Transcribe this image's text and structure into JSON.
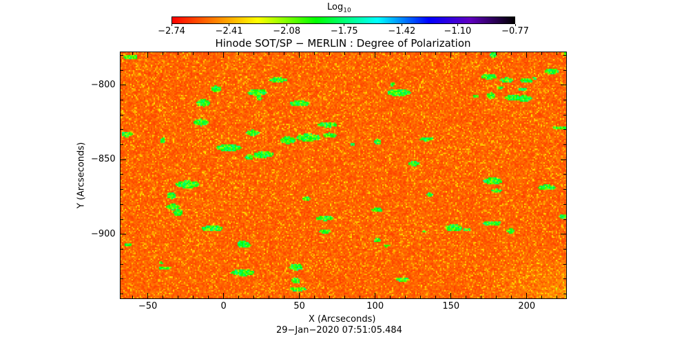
{
  "chart_data": {
    "type": "heatmap",
    "title": "Hinode SOT/SP − MERLIN : Degree of Polarization",
    "xlabel": "X (Arcseconds)",
    "ylabel": "Y (Arcseconds)",
    "xlim": [
      -68,
      226
    ],
    "ylim": [
      -943,
      -778
    ],
    "xticks": [
      "−50",
      "0",
      "50",
      "100",
      "150",
      "200"
    ],
    "xtick_values": [
      -50,
      0,
      50,
      100,
      150,
      200
    ],
    "yticks": [
      "−800",
      "−850",
      "−900"
    ],
    "ytick_values": [
      -800,
      -850,
      -900
    ],
    "colorbar": {
      "label": "Log",
      "label_sub": "10",
      "range": [
        -2.74,
        -0.77
      ],
      "tick_labels": [
        "−2.74",
        "−2.41",
        "−2.08",
        "−1.75",
        "−1.42",
        "−1.10",
        "−0.77"
      ],
      "tick_values": [
        -2.74,
        -2.41,
        -2.08,
        -1.75,
        -1.42,
        -1.1,
        -0.77
      ],
      "colors": [
        "#ff0000",
        "#ff8000",
        "#ffff00",
        "#00ff00",
        "#00ffff",
        "#0000ff",
        "#6000c0",
        "#000000"
      ]
    },
    "timestamp": "29−Jan−2020 07:51:05.484"
  }
}
